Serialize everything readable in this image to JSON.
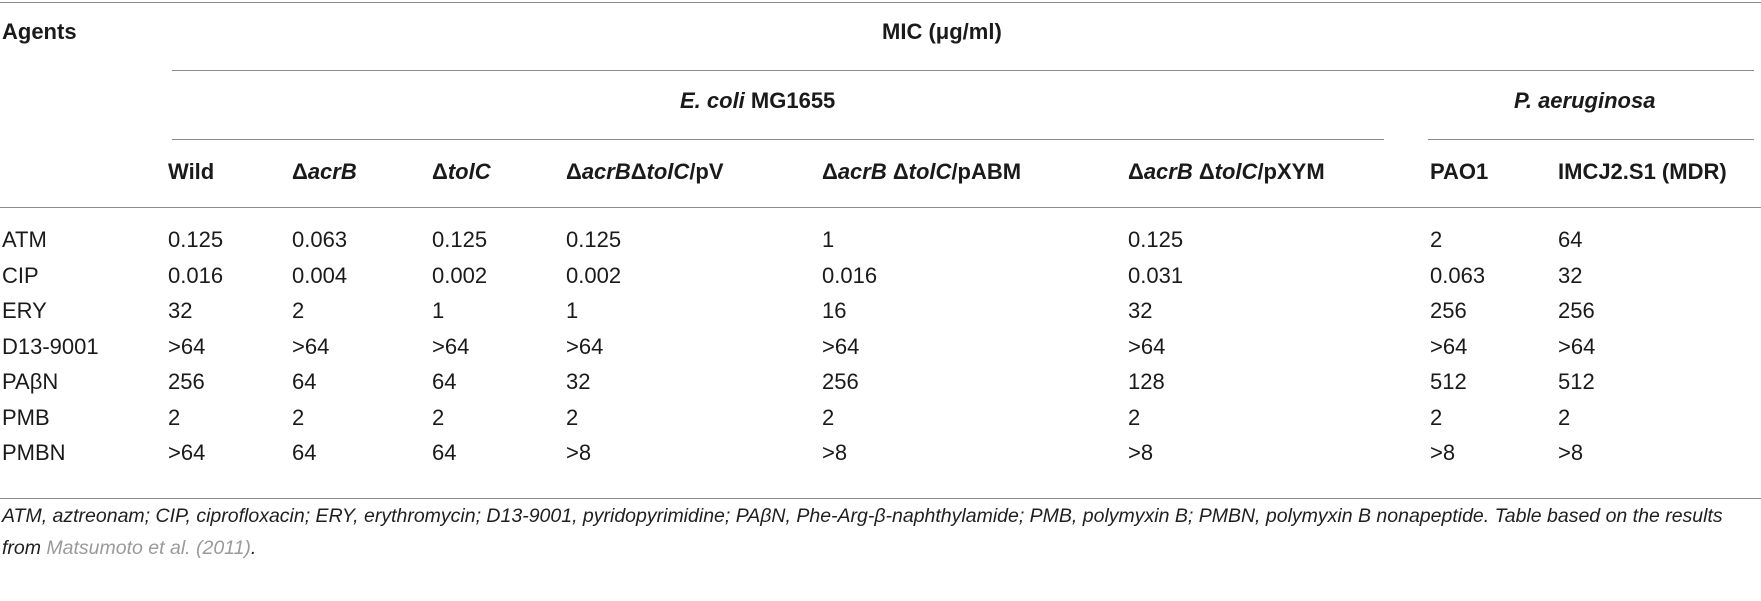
{
  "header": {
    "agents": "Agents",
    "mic": "MIC (μg/ml)",
    "ecoli_italic": "E. coli",
    "ecoli_strain": " MG1655",
    "paeruginosa": "P. aeruginosa",
    "columns": [
      {
        "parts": [
          {
            "t": "Wild",
            "i": false
          }
        ]
      },
      {
        "parts": [
          {
            "t": "Δ",
            "i": false
          },
          {
            "t": "acrB",
            "i": true
          }
        ]
      },
      {
        "parts": [
          {
            "t": "Δ",
            "i": false
          },
          {
            "t": "tolC",
            "i": true
          }
        ]
      },
      {
        "parts": [
          {
            "t": "Δ",
            "i": false
          },
          {
            "t": "acrB",
            "i": true
          },
          {
            "t": "Δ",
            "i": false
          },
          {
            "t": "tolC",
            "i": true
          },
          {
            "t": "/pV",
            "i": false
          }
        ]
      },
      {
        "parts": [
          {
            "t": "Δ",
            "i": false
          },
          {
            "t": "acrB",
            "i": true
          },
          {
            "t": " Δ",
            "i": false
          },
          {
            "t": "tolC",
            "i": true
          },
          {
            "t": "/pABM",
            "i": false
          }
        ]
      },
      {
        "parts": [
          {
            "t": "Δ",
            "i": false
          },
          {
            "t": "acrB",
            "i": true
          },
          {
            "t": " Δ",
            "i": false
          },
          {
            "t": "tolC",
            "i": true
          },
          {
            "t": "/pXYM",
            "i": false
          }
        ]
      },
      {
        "parts": [
          {
            "t": "PAO1",
            "i": false
          }
        ]
      },
      {
        "parts": [
          {
            "t": "IMCJ2.S1 (MDR)",
            "i": false
          }
        ]
      }
    ]
  },
  "rows": [
    {
      "agent": "ATM",
      "values": [
        "0.125",
        "0.063",
        "0.125",
        "0.125",
        "1",
        "0.125",
        "2",
        "64"
      ]
    },
    {
      "agent": "CIP",
      "values": [
        "0.016",
        "0.004",
        "0.002",
        "0.002",
        "0.016",
        "0.031",
        "0.063",
        "32"
      ]
    },
    {
      "agent": "ERY",
      "values": [
        "32",
        "2",
        "1",
        "1",
        "16",
        "32",
        "256",
        "256"
      ]
    },
    {
      "agent": "D13-9001",
      "values": [
        ">64",
        ">64",
        ">64",
        ">64",
        ">64",
        ">64",
        ">64",
        ">64"
      ]
    },
    {
      "agent": "PAβN",
      "values": [
        "256",
        "64",
        "64",
        "32",
        "256",
        "128",
        "512",
        "512"
      ]
    },
    {
      "agent": "PMB",
      "values": [
        "2",
        "2",
        "2",
        "2",
        "2",
        "2",
        "2",
        "2"
      ]
    },
    {
      "agent": "PMBN",
      "values": [
        ">64",
        "64",
        "64",
        ">8",
        ">8",
        ">8",
        ">8",
        ">8"
      ]
    }
  ],
  "caption": {
    "text": "ATM, aztreonam; CIP, ciprofloxacin; ERY, erythromycin; D13-9001, pyridopyrimidine; PAβN, Phe-Arg-β-naphthylamide; PMB, polymyxin B; PMBN, polymyxin B nonapeptide. Table based on the results from ",
    "ref": "Matsumoto et al. (2011)",
    "end": "."
  }
}
